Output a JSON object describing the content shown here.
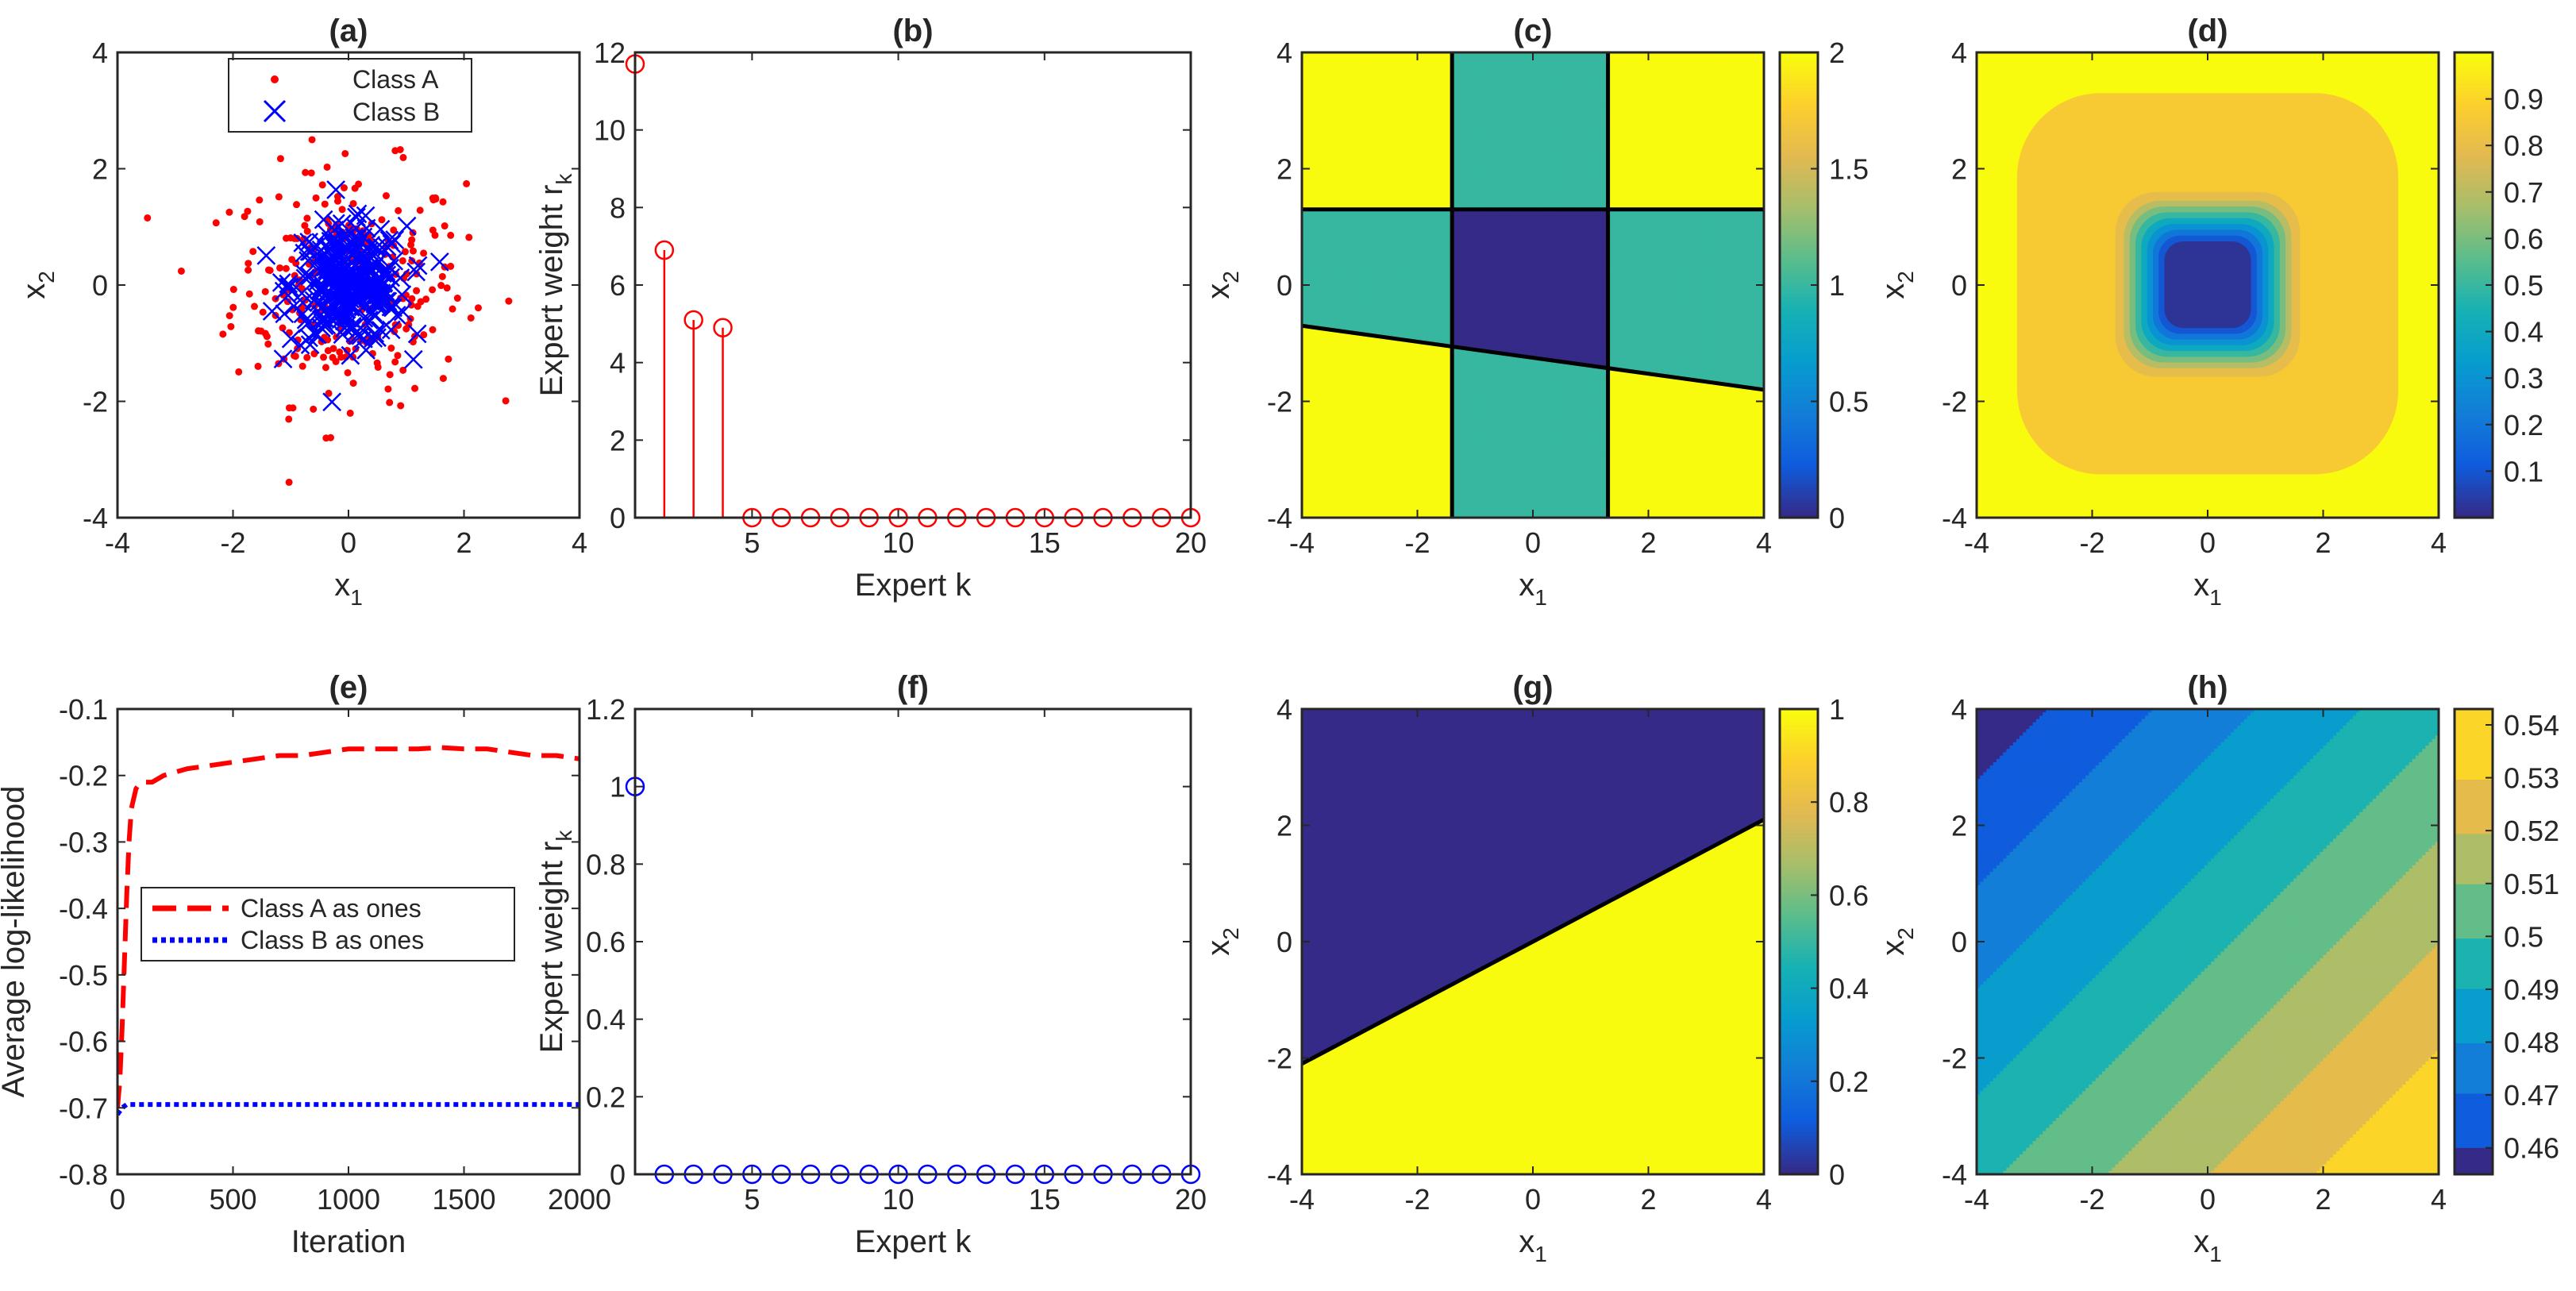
{
  "chart_data": [
    {
      "id": "a",
      "title": "(a)",
      "type": "scatter",
      "xlabel": "x",
      "xlabel_sub": "1",
      "ylabel": "x",
      "ylabel_sub": "2",
      "xlim": [
        -4,
        4
      ],
      "ylim": [
        -4,
        4
      ],
      "xticks": [
        -4,
        -2,
        0,
        2,
        4
      ],
      "yticks": [
        -4,
        -2,
        0,
        2,
        4
      ],
      "legend": {
        "position": "top",
        "entries": [
          "Class A",
          "Class B"
        ]
      },
      "series": [
        {
          "name": "Class A",
          "color": "#ff0000",
          "marker": "dot",
          "n": 300,
          "spread": 1.0
        },
        {
          "name": "Class B",
          "color": "#0000ff",
          "marker": "x",
          "n": 300,
          "spread": 0.5
        }
      ]
    },
    {
      "id": "b",
      "title": "(b)",
      "type": "stem",
      "xlabel": "Expert  k",
      "ylabel": "Expert weight  r",
      "ylabel_sub": "k",
      "xlim": [
        1,
        20
      ],
      "ylim": [
        0,
        12
      ],
      "xticks": [
        5,
        10,
        15,
        20
      ],
      "yticks": [
        0,
        2,
        4,
        6,
        8,
        10,
        12
      ],
      "color": "#ff0000",
      "x": [
        1,
        2,
        3,
        4,
        5,
        6,
        7,
        8,
        9,
        10,
        11,
        12,
        13,
        14,
        15,
        16,
        17,
        18,
        19,
        20
      ],
      "values": [
        11.7,
        6.9,
        5.1,
        4.9,
        0,
        0,
        0,
        0,
        0,
        0,
        0,
        0,
        0,
        0,
        0,
        0,
        0,
        0,
        0,
        0
      ]
    },
    {
      "id": "c",
      "title": "(c)",
      "type": "heatmap",
      "xlabel": "x",
      "xlabel_sub": "1",
      "ylabel": "x",
      "ylabel_sub": "2",
      "xlim": [
        -4,
        4
      ],
      "ylim": [
        -4,
        4
      ],
      "xticks": [
        -4,
        -2,
        0,
        2,
        4
      ],
      "yticks": [
        -4,
        -2,
        0,
        2,
        4
      ],
      "colorbar": {
        "ticks": [
          0,
          0.5,
          1,
          1.5,
          2
        ],
        "range": [
          0,
          2
        ]
      },
      "regions_description": "value = number of boundaries crossed; vertical boundaries at x1=-1.4 and x1=1.3, horizontal boundary at x2=1.3, sloped boundary from (-4,-0.7) to (4,-1.8)",
      "boundaries": {
        "x1_left": -1.4,
        "x1_right": 1.3,
        "x2_top": 1.3,
        "slope_line": [
          [
            -4,
            -0.7
          ],
          [
            4,
            -1.8
          ]
        ]
      }
    },
    {
      "id": "d",
      "title": "(d)",
      "type": "heatmap",
      "xlabel": "x",
      "xlabel_sub": "1",
      "ylabel": "x",
      "ylabel_sub": "2",
      "xlim": [
        -4,
        4
      ],
      "ylim": [
        -4,
        4
      ],
      "xticks": [
        -4,
        -2,
        0,
        2,
        4
      ],
      "yticks": [
        -4,
        -2,
        0,
        2,
        4
      ],
      "colorbar": {
        "ticks": [
          0.1,
          0.2,
          0.3,
          0.4,
          0.5,
          0.6,
          0.7,
          0.8,
          0.9
        ],
        "range": [
          0,
          1
        ]
      },
      "levels": [
        {
          "half_width": 3.3,
          "value": 0.87
        },
        {
          "half_width": 1.6,
          "value": 0.8
        },
        {
          "half_width": 1.45,
          "value": 0.7
        },
        {
          "half_width": 1.35,
          "value": 0.6
        },
        {
          "half_width": 1.25,
          "value": 0.5
        },
        {
          "half_width": 1.15,
          "value": 0.4
        },
        {
          "half_width": 1.05,
          "value": 0.3
        },
        {
          "half_width": 0.95,
          "value": 0.2
        },
        {
          "half_width": 0.85,
          "value": 0.1
        },
        {
          "half_width": 0.75,
          "value": 0.02
        }
      ],
      "background_value": 1.0
    },
    {
      "id": "e",
      "title": "(e)",
      "type": "line",
      "xlabel": "Iteration",
      "ylabel": "Average log-likelihood",
      "xlim": [
        0,
        2000
      ],
      "ylim": [
        -0.8,
        -0.1
      ],
      "xticks": [
        0,
        500,
        1000,
        1500,
        2000
      ],
      "yticks": [
        -0.8,
        -0.7,
        -0.6,
        -0.5,
        -0.4,
        -0.3,
        -0.2,
        -0.1
      ],
      "ytick_labels": [
        "-0.8",
        "-0.7",
        "-0.6",
        "-0.5",
        "-0.4",
        "-0.3",
        "-0.2",
        "-0.1"
      ],
      "legend": {
        "position": "center-left",
        "entries": [
          "Class A as ones",
          "Class B as ones"
        ]
      },
      "series": [
        {
          "name": "Class A as ones",
          "color": "#ff0000",
          "style": "dashed",
          "x": [
            0,
            10,
            20,
            30,
            40,
            50,
            60,
            80,
            100,
            150,
            200,
            300,
            400,
            500,
            600,
            700,
            800,
            900,
            1000,
            1100,
            1200,
            1300,
            1400,
            1500,
            1600,
            1700,
            1800,
            1900,
            2000
          ],
          "y": [
            -0.7,
            -0.66,
            -0.58,
            -0.48,
            -0.38,
            -0.3,
            -0.25,
            -0.22,
            -0.21,
            -0.21,
            -0.2,
            -0.19,
            -0.185,
            -0.18,
            -0.175,
            -0.17,
            -0.17,
            -0.165,
            -0.16,
            -0.16,
            -0.16,
            -0.16,
            -0.158,
            -0.16,
            -0.16,
            -0.165,
            -0.17,
            -0.17,
            -0.175
          ]
        },
        {
          "name": "Class B as ones",
          "color": "#0000ff",
          "style": "dotted",
          "x": [
            0,
            20,
            40,
            60,
            100,
            200,
            400,
            600,
            800,
            1000,
            1200,
            1400,
            1600,
            1800,
            2000
          ],
          "y": [
            -0.71,
            -0.7,
            -0.695,
            -0.695,
            -0.695,
            -0.695,
            -0.695,
            -0.695,
            -0.695,
            -0.695,
            -0.695,
            -0.695,
            -0.695,
            -0.695,
            -0.695
          ]
        }
      ]
    },
    {
      "id": "f",
      "title": "(f)",
      "type": "stem",
      "xlabel": "Expert  k",
      "ylabel": "Expert weight  r",
      "ylabel_sub": "k",
      "xlim": [
        1,
        20
      ],
      "ylim": [
        0,
        1.2
      ],
      "xticks": [
        5,
        10,
        15,
        20
      ],
      "yticks": [
        0,
        0.2,
        0.4,
        0.6,
        0.8,
        1,
        1.2
      ],
      "ytick_labels": [
        "0",
        "0.2",
        "0.4",
        "0.6",
        "0.8",
        "1",
        "1.2"
      ],
      "color": "#0000ff",
      "x": [
        1,
        2,
        3,
        4,
        5,
        6,
        7,
        8,
        9,
        10,
        11,
        12,
        13,
        14,
        15,
        16,
        17,
        18,
        19,
        20
      ],
      "values": [
        1,
        0,
        0,
        0,
        0,
        0,
        0,
        0,
        0,
        0,
        0,
        0,
        0,
        0,
        0,
        0,
        0,
        0,
        0,
        0
      ]
    },
    {
      "id": "g",
      "title": "(g)",
      "type": "heatmap",
      "xlabel": "x",
      "xlabel_sub": "1",
      "ylabel": "x",
      "ylabel_sub": "2",
      "xlim": [
        -4,
        4
      ],
      "ylim": [
        -4,
        4
      ],
      "xticks": [
        -4,
        -2,
        0,
        2,
        4
      ],
      "yticks": [
        -4,
        -2,
        0,
        2,
        4
      ],
      "colorbar": {
        "ticks": [
          0,
          0.2,
          0.4,
          0.6,
          0.8,
          1
        ],
        "range": [
          0,
          1
        ]
      },
      "boundary_line": [
        [
          -4,
          -2.1
        ],
        [
          4,
          2.1
        ]
      ],
      "above_value": 0,
      "below_value": 1
    },
    {
      "id": "h",
      "title": "(h)",
      "type": "heatmap",
      "xlabel": "x",
      "xlabel_sub": "1",
      "ylabel": "x",
      "ylabel_sub": "2",
      "xlim": [
        -4,
        4
      ],
      "ylim": [
        -4,
        4
      ],
      "xticks": [
        -4,
        -2,
        0,
        2,
        4
      ],
      "yticks": [
        -4,
        -2,
        0,
        2,
        4
      ],
      "colorbar": {
        "ticks": [
          0.46,
          0.47,
          0.48,
          0.49,
          0.5,
          0.51,
          0.52,
          0.53,
          0.54
        ],
        "range": [
          0.455,
          0.543
        ]
      },
      "levels": [
        0.46,
        0.47,
        0.48,
        0.49,
        0.5,
        0.51,
        0.52,
        0.53
      ],
      "level_values": [
        0.455,
        0.465,
        0.475,
        0.485,
        0.495,
        0.505,
        0.515,
        0.525,
        0.535
      ],
      "contour_direction": "bands rise from top-left to bottom-right"
    }
  ]
}
